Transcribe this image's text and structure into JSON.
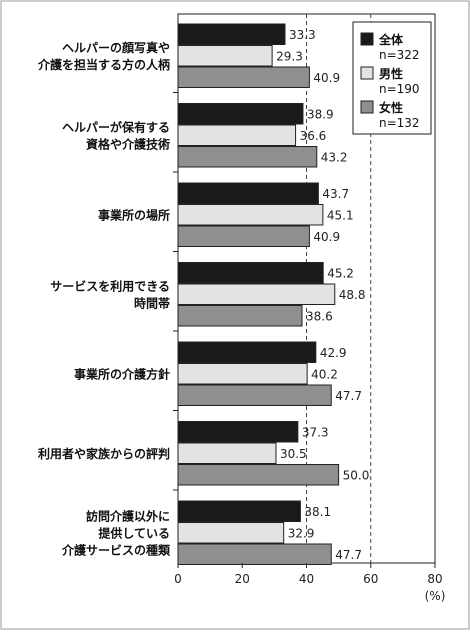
{
  "chart_data": {
    "type": "bar",
    "orientation": "horizontal",
    "categories": [
      [
        "ヘルパーの顔写真や",
        "介護を担当する方の人柄"
      ],
      [
        "ヘルパーが保有する",
        "資格や介護技術"
      ],
      [
        "事業所の場所"
      ],
      [
        "サービスを利用できる",
        "時間帯"
      ],
      [
        "事業所の介護方針"
      ],
      [
        "利用者や家族からの評判"
      ],
      [
        "訪問介護以外に",
        "提供している",
        "介護サービスの種類"
      ]
    ],
    "series": [
      {
        "name": "全体",
        "sub": "n=322",
        "color": "#1a1a1a",
        "values": [
          33.3,
          38.9,
          43.7,
          45.2,
          42.9,
          37.3,
          38.1
        ],
        "labels": [
          "33.3",
          "38.9",
          "43.7",
          "45.2",
          "42.9",
          "37.3",
          "38.1"
        ]
      },
      {
        "name": "男性",
        "sub": "n=190",
        "color": "#e3e3e3",
        "values": [
          29.3,
          36.6,
          45.1,
          48.8,
          40.2,
          30.5,
          32.9
        ],
        "labels": [
          "29.3",
          "36.6",
          "45.1",
          "48.8",
          "40.2",
          "30.5",
          "32.9"
        ]
      },
      {
        "name": "女性",
        "sub": "n=132",
        "color": "#8f8f8f",
        "values": [
          40.9,
          43.2,
          40.9,
          38.6,
          47.7,
          50.0,
          47.7
        ],
        "labels": [
          "40.9",
          "43.2",
          "40.9",
          "38.6",
          "47.7",
          "50.0",
          "47.7"
        ]
      }
    ],
    "xlim": [
      0,
      80
    ],
    "xticks": [
      "0",
      "20",
      "40",
      "60",
      "80"
    ],
    "xunit": "(%)",
    "dashed_gridlines_at": [
      40,
      60
    ],
    "legend_position": "top-right"
  }
}
